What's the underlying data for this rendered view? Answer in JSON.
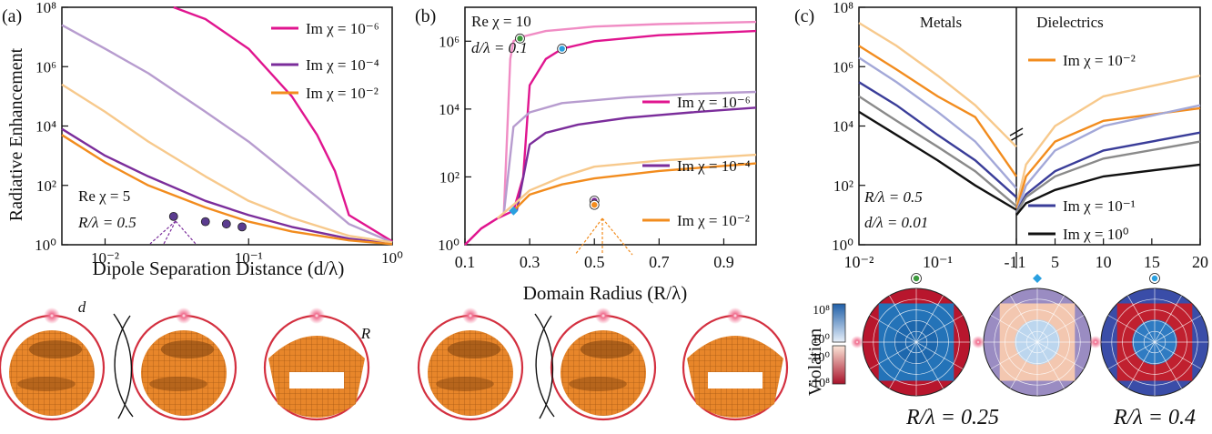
{
  "panel_a": {
    "tag": "(a)",
    "xlabel": "Dipole Separation Distance (d/λ)",
    "ylabel": "Radiative Enhancement",
    "note1": "Re χ = 5",
    "note2": "R/λ = 0.5",
    "xticks": [
      "10⁻²",
      "10⁻¹",
      "10⁰"
    ],
    "yticks": [
      "10⁰",
      "10²",
      "10⁴",
      "10⁶",
      "10⁸"
    ],
    "legend": [
      {
        "label": "Im χ = 10⁻⁶",
        "color": "#e0158f"
      },
      {
        "label": "Im χ = 10⁻⁴",
        "color": "#7b2d9b"
      },
      {
        "label": "Im χ = 10⁻²",
        "color": "#f28c1e"
      }
    ],
    "inset_labels": [
      "d",
      "R"
    ]
  },
  "panel_b": {
    "tag": "(b)",
    "xlabel": "Domain Radius (R/λ)",
    "note1": "Re χ = 10",
    "note2": "d/λ = 0.1",
    "xticks": [
      "0.1",
      "0.3",
      "0.5",
      "0.7",
      "0.9"
    ],
    "yticks": [
      "10⁰",
      "10²",
      "10⁴",
      "10⁶"
    ],
    "legend": [
      {
        "label": "Im χ = 10⁻⁶",
        "color": "#e0158f"
      },
      {
        "label": "Im χ = 10⁻⁴",
        "color": "#7b2d9b"
      },
      {
        "label": "Im χ = 10⁻²",
        "color": "#f28c1e"
      }
    ]
  },
  "panel_c": {
    "tag": "(c)",
    "left_title": "Metals",
    "right_title": "Dielectrics",
    "note1": "R/λ = 0.5",
    "note2": "d/λ = 0.01",
    "xticks_left": [
      "10⁻²",
      "10⁻¹",
      "-1"
    ],
    "xticks_right": [
      "1",
      "5",
      "10",
      "15",
      "20"
    ],
    "yticks": [
      "10⁰",
      "10²",
      "10⁴",
      "10⁶",
      "10⁸"
    ],
    "legend": [
      {
        "label": "Im χ = 10⁻²",
        "color": "#f28c1e"
      },
      {
        "label": "Im χ = 10⁻¹",
        "color": "#3a3d99"
      },
      {
        "label": "Im χ = 10⁰",
        "color": "#111111"
      }
    ],
    "colorbar_label": "Violation",
    "colorbar_ticks": [
      "10⁸",
      "10⁰",
      "-10⁰",
      "-10⁸"
    ],
    "polar_captions": [
      "R/λ = 0.25",
      "R/λ = 0.4"
    ]
  },
  "chart_data": [
    {
      "type": "line",
      "panel": "a",
      "xscale": "log",
      "yscale": "log",
      "xlim": [
        0.005,
        1
      ],
      "ylim": [
        1,
        100000000
      ],
      "series": [
        {
          "name": "Im χ = 10⁻⁶",
          "color": "#e0158f",
          "x": [
            0.03,
            0.05,
            0.1,
            0.2,
            0.3,
            0.4,
            0.5,
            1
          ],
          "y": [
            100000000,
            40000000,
            4000000,
            100000,
            5000,
            300,
            10,
            1.3
          ]
        },
        {
          "color": "#b79ccf",
          "x": [
            0.005,
            0.01,
            0.02,
            0.05,
            0.1,
            0.2,
            0.3,
            0.5,
            1
          ],
          "y": [
            25000000,
            4000000,
            600000,
            30000,
            3000,
            200,
            40,
            5,
            1.2
          ]
        },
        {
          "name": "Im χ = 10⁻⁴",
          "color": "#7b2d9b",
          "x": [
            0.005,
            0.01,
            0.02,
            0.05,
            0.1,
            0.2,
            0.5,
            1
          ],
          "y": [
            8000,
            1000,
            200,
            30,
            10,
            4,
            1.6,
            1.1
          ]
        },
        {
          "color": "#f7c98c",
          "x": [
            0.005,
            0.01,
            0.02,
            0.05,
            0.1,
            0.2,
            0.5,
            1
          ],
          "y": [
            250000,
            30000,
            3000,
            200,
            30,
            8,
            2,
            1.2
          ]
        },
        {
          "name": "Im χ = 10⁻²",
          "color": "#f28c1e",
          "x": [
            0.005,
            0.01,
            0.02,
            0.05,
            0.1,
            0.2,
            0.5,
            1
          ],
          "y": [
            5000,
            600,
            100,
            18,
            6,
            2.8,
            1.4,
            1.05
          ]
        }
      ],
      "markers": {
        "color": "#5b3c8f",
        "x": [
          0.03,
          0.05,
          0.07,
          0.09
        ],
        "y": [
          9,
          6,
          5,
          4
        ]
      }
    },
    {
      "type": "line",
      "panel": "b",
      "yscale": "log",
      "xlim": [
        0.1,
        1
      ],
      "ylim": [
        1,
        10000000
      ],
      "series": [
        {
          "color": "#f08cc4",
          "x": [
            0.1,
            0.15,
            0.2,
            0.22,
            0.24,
            0.25,
            0.27,
            0.35,
            0.5,
            0.7,
            1
          ],
          "y": [
            1,
            3,
            6,
            8,
            300000,
            1000000,
            1300000,
            2000000,
            2700000,
            3200000,
            3700000
          ]
        },
        {
          "name": "Im χ = 10⁻⁶",
          "color": "#e0158f",
          "x": [
            0.1,
            0.15,
            0.2,
            0.25,
            0.28,
            0.3,
            0.35,
            0.4,
            0.5,
            0.7,
            1
          ],
          "y": [
            1,
            3,
            6,
            10,
            100,
            50000,
            300000,
            600000,
            1000000,
            1500000,
            2000000
          ]
        },
        {
          "color": "#b79ccf",
          "x": [
            0.22,
            0.25,
            0.3,
            0.4,
            0.6,
            0.8,
            1
          ],
          "y": [
            8,
            3000,
            8000,
            15000,
            22000,
            28000,
            32000
          ]
        },
        {
          "name": "Im χ = 10⁻⁴",
          "color": "#7b2d9b",
          "x": [
            0.26,
            0.3,
            0.35,
            0.45,
            0.6,
            0.8,
            1
          ],
          "y": [
            10,
            900,
            2000,
            3500,
            5500,
            8000,
            11000
          ]
        },
        {
          "color": "#f7c98c",
          "x": [
            0.2,
            0.25,
            0.3,
            0.4,
            0.5,
            0.7,
            1
          ],
          "y": [
            6,
            15,
            40,
            100,
            200,
            300,
            450
          ]
        },
        {
          "name": "Im χ = 10⁻²",
          "color": "#f28c1e",
          "x": [
            0.25,
            0.3,
            0.4,
            0.5,
            0.7,
            1
          ],
          "y": [
            10,
            30,
            60,
            90,
            150,
            250
          ]
        }
      ],
      "markers": {
        "x": [
          0.27,
          0.4,
          0.25,
          0.5,
          0.5
        ],
        "y": [
          1200000,
          600000,
          10,
          20,
          15
        ],
        "colors": [
          "#3c9a3c",
          "#2aa0e0",
          "#2aa0e0",
          "#7b2d9b",
          "#f28c1e"
        ]
      }
    },
    {
      "type": "line",
      "panel": "c",
      "yscale": "log",
      "x_axis": "Re χ (metals: -Re χ from 10⁻² to 1, dielectrics: 1 to 20)",
      "ylim": [
        1,
        100000000
      ],
      "series": [
        {
          "color": "#f7c98c",
          "x": [
            -0.01,
            -0.03,
            -0.1,
            -0.3,
            -1,
            1,
            2,
            5,
            10,
            20
          ],
          "y": [
            30000000,
            5000000,
            500000,
            50000,
            2000,
            20,
            500,
            10000,
            100000,
            500000
          ]
        },
        {
          "name": "Im χ = 10⁻²",
          "color": "#f28c1e",
          "x": [
            -0.01,
            -0.03,
            -0.1,
            -0.3,
            -1,
            1,
            2,
            5,
            10,
            20
          ],
          "y": [
            5000000,
            800000,
            100000,
            20000,
            200,
            15,
            200,
            3000,
            15000,
            40000
          ]
        },
        {
          "color": "#a3a8d8",
          "x": [
            -0.01,
            -0.03,
            -0.1,
            -0.3,
            -1,
            1,
            2,
            5,
            10,
            20
          ],
          "y": [
            2000000,
            300000,
            30000,
            3000,
            80,
            12,
            100,
            1500,
            10000,
            50000
          ]
        },
        {
          "name": "Im χ = 10⁻¹",
          "color": "#3a3d99",
          "x": [
            -0.01,
            -0.03,
            -0.1,
            -0.3,
            -1,
            1,
            2,
            5,
            10,
            20
          ],
          "y": [
            300000,
            50000,
            5000,
            700,
            40,
            12,
            50,
            300,
            1500,
            6000
          ]
        },
        {
          "color": "#8a8a8a",
          "x": [
            -0.01,
            -0.03,
            -0.1,
            -0.3,
            -1,
            1,
            2,
            5,
            10,
            20
          ],
          "y": [
            100000,
            15000,
            2000,
            300,
            20,
            12,
            40,
            200,
            800,
            3000
          ]
        },
        {
          "name": "Im χ = 10⁰",
          "color": "#111111",
          "x": [
            -0.01,
            -0.03,
            -0.1,
            -0.3,
            -1,
            1,
            2,
            5,
            10,
            20
          ],
          "y": [
            30000,
            5000,
            700,
            100,
            15,
            10,
            25,
            70,
            200,
            500
          ]
        }
      ]
    }
  ]
}
